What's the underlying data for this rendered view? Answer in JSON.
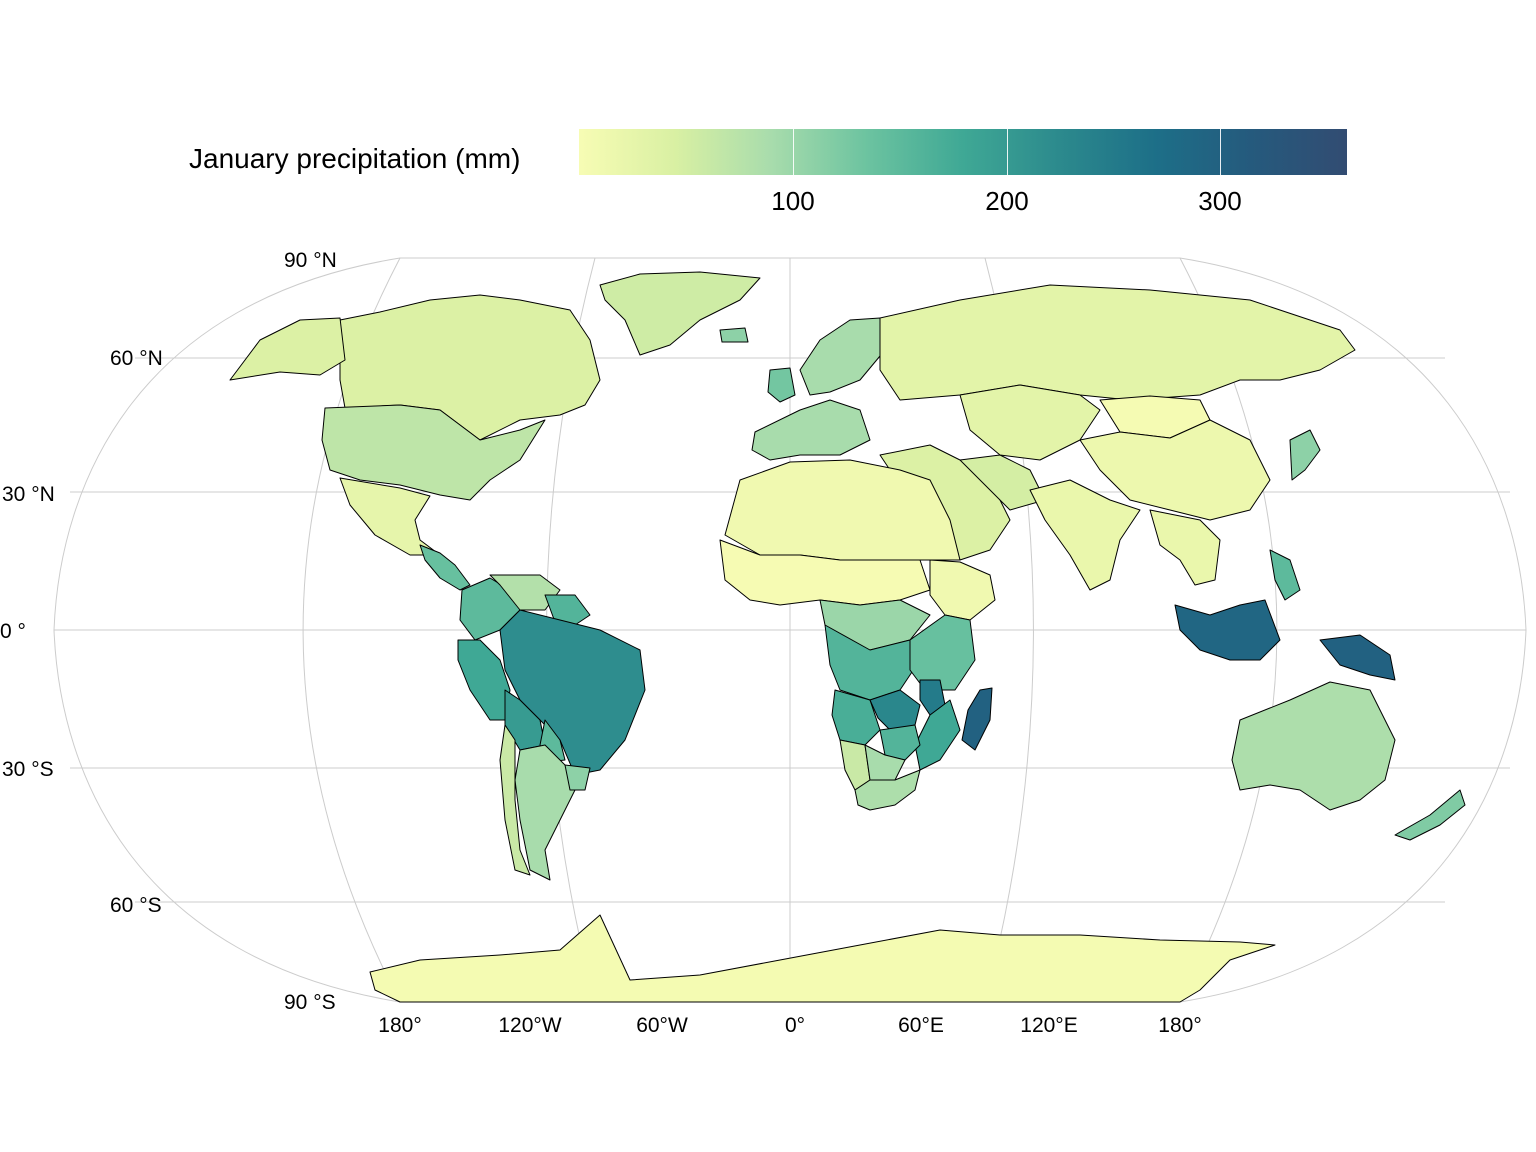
{
  "legend": {
    "title": "January precipitation (mm)",
    "min": 0,
    "max": 360,
    "ticks": [
      {
        "value": 100,
        "label": "100"
      },
      {
        "value": 200,
        "label": "200"
      },
      {
        "value": 300,
        "label": "300"
      }
    ],
    "colors": [
      "#f7fcb4",
      "#d9f0a3",
      "#a8dcac",
      "#6cc3a0",
      "#3fa895",
      "#2c8a8d",
      "#1d6f88",
      "#255a7d",
      "#324c72"
    ]
  },
  "axes": {
    "lat_labels": [
      "90 °N",
      "60 °N",
      "30 °N",
      "0 °",
      "30 °S",
      "60 °S",
      "90 °S"
    ],
    "lon_labels": [
      "180°",
      "120°W",
      "60°W",
      "0°",
      "60°E",
      "120°E",
      "180°"
    ]
  },
  "map": {
    "projection": "Robinson",
    "background": "#ffffff",
    "graticule_color": "#cccccc",
    "border_color": "#000000",
    "regions": [
      {
        "name": "Greenland",
        "value": 55
      },
      {
        "name": "Canada",
        "value": 40
      },
      {
        "name": "Alaska",
        "value": 40
      },
      {
        "name": "United States",
        "value": 70
      },
      {
        "name": "Mexico",
        "value": 25
      },
      {
        "name": "Central America",
        "value": 140
      },
      {
        "name": "Colombia",
        "value": 150
      },
      {
        "name": "Venezuela",
        "value": 80
      },
      {
        "name": "Guianas",
        "value": 160
      },
      {
        "name": "Brazil",
        "value": 220
      },
      {
        "name": "Peru",
        "value": 180
      },
      {
        "name": "Bolivia",
        "value": 200
      },
      {
        "name": "Paraguay",
        "value": 150
      },
      {
        "name": "Argentina",
        "value": 90
      },
      {
        "name": "Chile",
        "value": 60
      },
      {
        "name": "Uruguay",
        "value": 110
      },
      {
        "name": "Western Europe",
        "value": 90
      },
      {
        "name": "United Kingdom",
        "value": 130
      },
      {
        "name": "Iceland",
        "value": 110
      },
      {
        "name": "Scandinavia",
        "value": 90
      },
      {
        "name": "Russia",
        "value": 30
      },
      {
        "name": "Middle East",
        "value": 40
      },
      {
        "name": "Iran",
        "value": 50
      },
      {
        "name": "Central Asia",
        "value": 30
      },
      {
        "name": "Mongolia",
        "value": 3
      },
      {
        "name": "China",
        "value": 15
      },
      {
        "name": "Japan",
        "value": 110
      },
      {
        "name": "India",
        "value": 20
      },
      {
        "name": "Southeast Asia",
        "value": 20
      },
      {
        "name": "Philippines",
        "value": 150
      },
      {
        "name": "Indonesia",
        "value": 290
      },
      {
        "name": "Papua New Guinea",
        "value": 300
      },
      {
        "name": "Australia",
        "value": 85
      },
      {
        "name": "New Zealand",
        "value": 120
      },
      {
        "name": "North Africa",
        "value": 10
      },
      {
        "name": "Sahel",
        "value": 2
      },
      {
        "name": "Ethiopia",
        "value": 10
      },
      {
        "name": "Central Africa",
        "value": 100
      },
      {
        "name": "Congo Basin",
        "value": 160
      },
      {
        "name": "Tanzania",
        "value": 140
      },
      {
        "name": "Angola",
        "value": 170
      },
      {
        "name": "Zambia",
        "value": 230
      },
      {
        "name": "Malawi",
        "value": 250
      },
      {
        "name": "Mozambique",
        "value": 180
      },
      {
        "name": "Zimbabwe",
        "value": 160
      },
      {
        "name": "Namibia",
        "value": 60
      },
      {
        "name": "Botswana",
        "value": 90
      },
      {
        "name": "South Africa",
        "value": 85
      },
      {
        "name": "Madagascar",
        "value": 300
      },
      {
        "name": "Antarctica",
        "value": 5
      }
    ]
  }
}
